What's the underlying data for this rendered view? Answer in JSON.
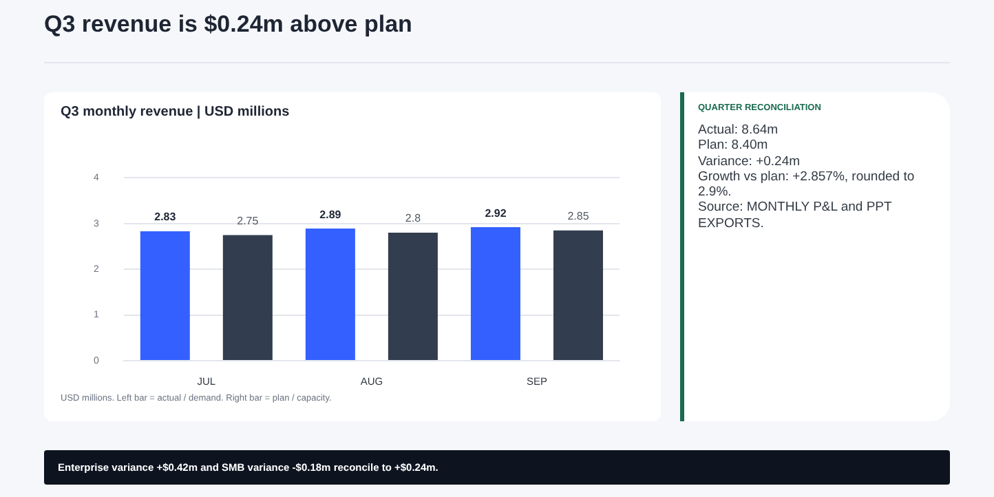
{
  "chart_data": [
    {
      "type": "bar",
      "title": "Q3 monthly revenue | USD millions",
      "categories": [
        "JUL",
        "AUG",
        "SEP"
      ],
      "series": [
        {
          "color": "#3360ff",
          "values": [
            2.83,
            2.89,
            2.92
          ]
        },
        {
          "color": "#323e4f",
          "values": [
            2.75,
            2.8,
            2.85
          ]
        }
      ],
      "ylim": [
        0,
        4
      ],
      "yticks": [
        0,
        1,
        2,
        3,
        4
      ],
      "grid": "y",
      "data_labels": true,
      "annotations": [
        "Q3 revenue is $0.24m above plan",
        "USD millions. Left bar = actual / demand. Right bar = plan / capacity.",
        "Enterprise variance +$0.42m and SMB variance -$0.18m reconcile to +$0.24m."
      ]
    },
    {
      "type": "other",
      "title": "QUARTER RECONCILIATION",
      "annotations": [
        "Actual: 8.64m",
        "Plan: 8.40m",
        "Variance: +0.24m",
        "Growth vs plan: +2.857%, rounded to 2.9%.",
        "Source: MONTHLY P&L and PPT EXPORTS."
      ]
    }
  ]
}
